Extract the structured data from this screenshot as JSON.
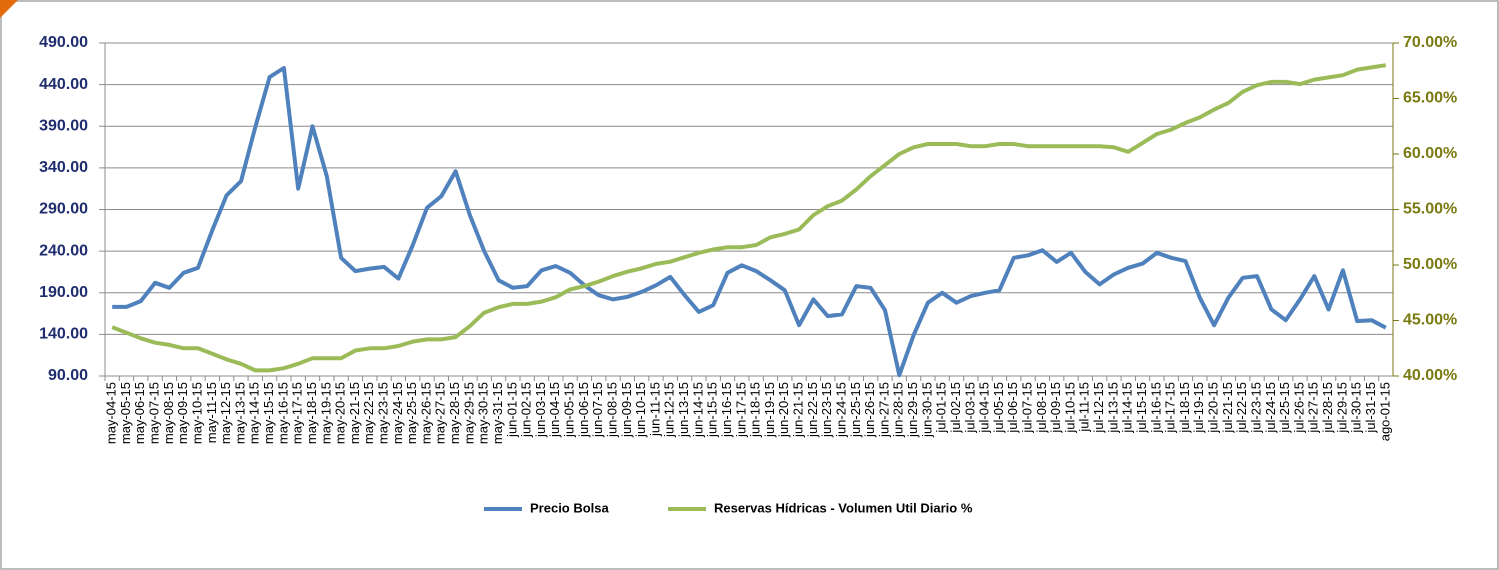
{
  "chart_data": {
    "type": "line",
    "categories": [
      "may-04-15",
      "may-05-15",
      "may-06-15",
      "may-07-15",
      "may-08-15",
      "may-09-15",
      "may-10-15",
      "may-11-15",
      "may-12-15",
      "may-13-15",
      "may-14-15",
      "may-15-15",
      "may-16-15",
      "may-17-15",
      "may-18-15",
      "may-19-15",
      "may-20-15",
      "may-21-15",
      "may-22-15",
      "may-23-15",
      "may-24-15",
      "may-25-15",
      "may-26-15",
      "may-27-15",
      "may-28-15",
      "may-29-15",
      "may-30-15",
      "may-31-15",
      "jun-01-15",
      "jun-02-15",
      "jun-03-15",
      "jun-04-15",
      "jun-05-15",
      "jun-06-15",
      "jun-07-15",
      "jun-08-15",
      "jun-09-15",
      "jun-10-15",
      "jun-11-15",
      "jun-12-15",
      "jun-13-15",
      "jun-14-15",
      "jun-15-15",
      "jun-16-15",
      "jun-17-15",
      "jun-18-15",
      "jun-19-15",
      "jun-20-15",
      "jun-21-15",
      "jun-22-15",
      "jun-23-15",
      "jun-24-15",
      "jun-25-15",
      "jun-26-15",
      "jun-27-15",
      "jun-28-15",
      "jun-29-15",
      "jun-30-15",
      "jul-01-15",
      "jul-02-15",
      "jul-03-15",
      "jul-04-15",
      "jul-05-15",
      "jul-06-15",
      "jul-07-15",
      "jul-08-15",
      "jul-09-15",
      "jul-10-15",
      "jul-11-15",
      "jul-12-15",
      "jul-13-15",
      "jul-14-15",
      "jul-15-15",
      "jul-16-15",
      "jul-17-15",
      "jul-18-15",
      "jul-19-15",
      "jul-20-15",
      "jul-21-15",
      "jul-22-15",
      "jul-23-15",
      "jul-24-15",
      "jul-25-15",
      "jul-26-15",
      "jul-27-15",
      "jul-28-15",
      "jul-29-15",
      "jul-30-15",
      "jul-31-15",
      "ago-01-15"
    ],
    "series": [
      {
        "name": "Precio Bolsa",
        "color": "#4f81bd",
        "values": [
          173,
          173,
          180,
          202,
          196,
          214,
          220,
          265,
          307,
          324,
          389,
          449,
          460,
          315,
          390,
          330,
          232,
          216,
          219,
          221,
          207,
          247,
          292,
          306,
          336,
          283,
          240,
          205,
          196,
          198,
          217,
          222,
          214,
          199,
          187,
          182,
          185,
          191,
          199,
          209,
          187,
          167,
          175,
          214,
          223,
          216,
          205,
          193,
          151,
          182,
          162,
          164,
          198,
          196,
          169,
          91,
          139,
          178,
          190,
          178,
          186,
          190,
          193,
          232,
          235,
          241,
          227,
          238,
          215,
          200,
          212,
          220,
          225,
          238,
          232,
          228,
          184,
          151,
          184,
          208,
          210,
          170,
          157,
          182,
          210,
          170,
          217,
          156,
          157,
          148
        ]
      },
      {
        "name": "Reservas Hídricas - Volumen Util Diario %",
        "color": "#9bbb59",
        "axis": "y2",
        "values": [
          44.4,
          43.9,
          43.4,
          43.0,
          42.8,
          42.5,
          42.5,
          42.0,
          41.5,
          41.1,
          40.5,
          40.5,
          40.7,
          41.1,
          41.6,
          41.6,
          41.6,
          42.3,
          42.5,
          42.5,
          42.7,
          43.1,
          43.3,
          43.3,
          43.5,
          44.5,
          45.7,
          46.2,
          46.5,
          46.5,
          46.7,
          47.1,
          47.8,
          48.1,
          48.5,
          49.0,
          49.4,
          49.7,
          50.1,
          50.3,
          50.7,
          51.1,
          51.4,
          51.6,
          51.6,
          51.8,
          52.5,
          52.8,
          53.2,
          54.5,
          55.3,
          55.8,
          56.8,
          58.0,
          59.0,
          60.0,
          60.6,
          60.9,
          60.9,
          60.9,
          60.7,
          60.7,
          60.9,
          60.9,
          60.7,
          60.7,
          60.7,
          60.7,
          60.7,
          60.7,
          60.6,
          60.2,
          61.0,
          61.8,
          62.2,
          62.8,
          63.3,
          64.0,
          64.6,
          65.6,
          66.2,
          66.5,
          66.5,
          66.3,
          66.7,
          66.9,
          67.1,
          67.6,
          67.8,
          68.0
        ]
      }
    ],
    "ylim": [
      90,
      490
    ],
    "yticks": [
      {
        "value": 90,
        "label": "90.00"
      },
      {
        "value": 140,
        "label": "140.00"
      },
      {
        "value": 190,
        "label": "190.00"
      },
      {
        "value": 240,
        "label": "240.00"
      },
      {
        "value": 290,
        "label": "290.00"
      },
      {
        "value": 340,
        "label": "340.00"
      },
      {
        "value": 390,
        "label": "390.00"
      },
      {
        "value": 440,
        "label": "440.00"
      },
      {
        "value": 490,
        "label": "490.00"
      }
    ],
    "y2lim": [
      40,
      70
    ],
    "y2ticks": [
      {
        "value": 40,
        "label": "40.00%"
      },
      {
        "value": 45,
        "label": "45.00%"
      },
      {
        "value": 50,
        "label": "50.00%"
      },
      {
        "value": 55,
        "label": "55.00%"
      },
      {
        "value": 60,
        "label": "60.00%"
      },
      {
        "value": 65,
        "label": "65.00%"
      },
      {
        "value": 70,
        "label": "70.00%"
      }
    ],
    "grid": true
  }
}
